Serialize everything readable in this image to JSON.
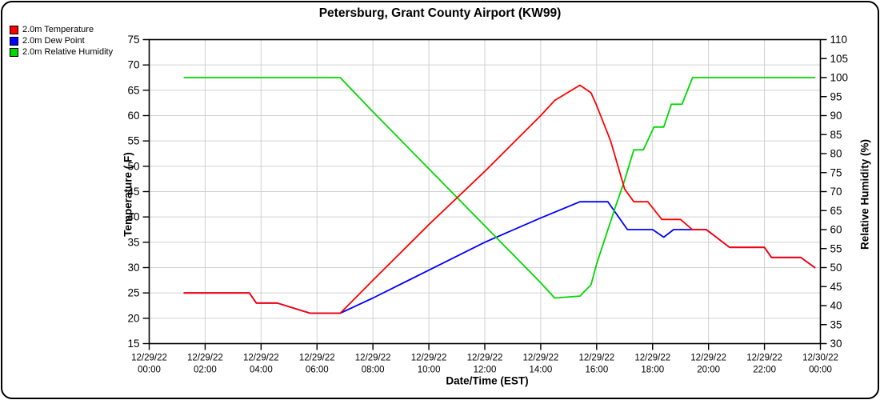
{
  "chart_data": {
    "type": "line",
    "title": "Petersburg, Grant County Airport (KW99)",
    "x_axis": {
      "label": "Date/Time (EST)",
      "min_hours": 0,
      "max_hours": 24,
      "ticks": [
        {
          "h": 0,
          "date": "12/29/22",
          "time": "00:00"
        },
        {
          "h": 2,
          "date": "12/29/22",
          "time": "02:00"
        },
        {
          "h": 4,
          "date": "12/29/22",
          "time": "04:00"
        },
        {
          "h": 6,
          "date": "12/29/22",
          "time": "06:00"
        },
        {
          "h": 8,
          "date": "12/29/22",
          "time": "08:00"
        },
        {
          "h": 10,
          "date": "12/29/22",
          "time": "10:00"
        },
        {
          "h": 12,
          "date": "12/29/22",
          "time": "12:00"
        },
        {
          "h": 14,
          "date": "12/29/22",
          "time": "14:00"
        },
        {
          "h": 16,
          "date": "12/29/22",
          "time": "16:00"
        },
        {
          "h": 18,
          "date": "12/29/22",
          "time": "18:00"
        },
        {
          "h": 20,
          "date": "12/29/22",
          "time": "20:00"
        },
        {
          "h": 22,
          "date": "12/29/22",
          "time": "22:00"
        },
        {
          "h": 24,
          "date": "12/30/22",
          "time": "00:00"
        }
      ]
    },
    "left_axis": {
      "label": "Temperature ( F)",
      "min": 15,
      "max": 75,
      "step": 5
    },
    "right_axis": {
      "label": "Relative Humidity (%)",
      "min": 30,
      "max": 110,
      "step": 5
    },
    "grid_color": "#d0d0d0",
    "series": [
      {
        "key": "temperature",
        "name": "2.0m Temperature",
        "color": "#ff0000",
        "axis": "left",
        "points": [
          [
            1.25,
            25
          ],
          [
            3.58,
            25
          ],
          [
            3.83,
            23
          ],
          [
            4.58,
            23
          ],
          [
            5.75,
            21
          ],
          [
            6.83,
            21
          ],
          [
            8,
            27.5
          ],
          [
            10,
            38.5
          ],
          [
            12,
            49
          ],
          [
            14,
            60
          ],
          [
            14.5,
            63
          ],
          [
            15.4,
            66
          ],
          [
            15.8,
            64.5
          ],
          [
            16,
            62
          ],
          [
            16.5,
            55
          ],
          [
            17,
            45.5
          ],
          [
            17.33,
            43
          ],
          [
            17.83,
            43
          ],
          [
            18.33,
            39.5
          ],
          [
            19,
            39.5
          ],
          [
            19.42,
            37.5
          ],
          [
            19.92,
            37.5
          ],
          [
            20.75,
            34
          ],
          [
            22,
            34
          ],
          [
            22.25,
            32
          ],
          [
            23.3,
            32
          ],
          [
            23.8,
            30
          ]
        ]
      },
      {
        "key": "dew-point",
        "name": "2.0m Dew Point",
        "color": "#0000ff",
        "axis": "left",
        "points": [
          [
            1.25,
            25
          ],
          [
            3.58,
            25
          ],
          [
            3.83,
            23
          ],
          [
            4.58,
            23
          ],
          [
            5.75,
            21
          ],
          [
            6.83,
            21
          ],
          [
            8,
            24
          ],
          [
            10,
            29.5
          ],
          [
            12,
            35
          ],
          [
            14,
            39.8
          ],
          [
            15.4,
            43
          ],
          [
            16.4,
            43
          ],
          [
            17.1,
            37.5
          ],
          [
            18,
            37.5
          ],
          [
            18.4,
            36
          ],
          [
            18.75,
            37.5
          ],
          [
            19.42,
            37.5
          ],
          [
            19.92,
            37.5
          ],
          [
            20.75,
            34
          ],
          [
            22,
            34
          ],
          [
            22.25,
            32
          ],
          [
            23.3,
            32
          ],
          [
            23.8,
            30
          ]
        ]
      },
      {
        "key": "relative-humidity",
        "name": "2.0m Relative Humidity",
        "color": "#00d800",
        "axis": "right",
        "points": [
          [
            1.25,
            100
          ],
          [
            6.83,
            100
          ],
          [
            8,
            91
          ],
          [
            10,
            76
          ],
          [
            12,
            61
          ],
          [
            14,
            46
          ],
          [
            14.5,
            42
          ],
          [
            15.4,
            42.5
          ],
          [
            15.8,
            45.5
          ],
          [
            16,
            51
          ],
          [
            16.67,
            66
          ],
          [
            17,
            73
          ],
          [
            17.33,
            81
          ],
          [
            17.67,
            81
          ],
          [
            18.05,
            87
          ],
          [
            18.4,
            87
          ],
          [
            18.67,
            93
          ],
          [
            19.05,
            93
          ],
          [
            19.43,
            100
          ],
          [
            23.8,
            100
          ]
        ]
      }
    ]
  }
}
